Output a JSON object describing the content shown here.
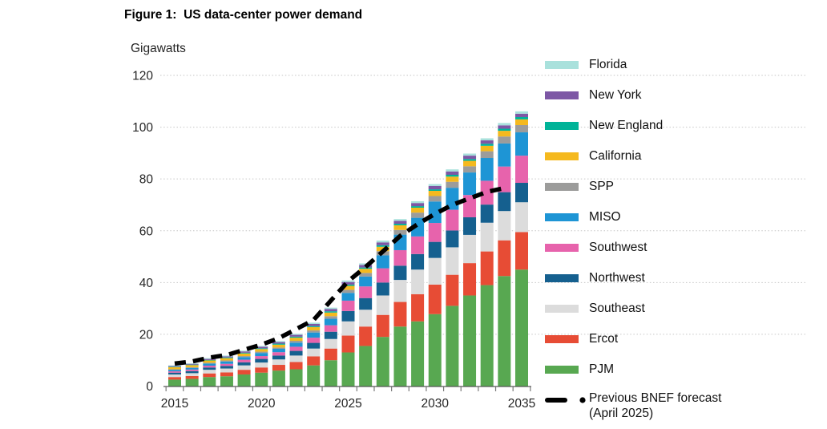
{
  "figure": {
    "title": "Figure 1:  US data-center power demand",
    "y_unit_label": "Gigawatts"
  },
  "legend": {
    "forecast_label_line1": "Previous BNEF forecast",
    "forecast_label_line2": "(April 2025)"
  },
  "chart_data": {
    "type": "bar",
    "stacked": true,
    "title": "Figure 1:  US data-center power demand",
    "ylabel": "Gigawatts",
    "ylim": [
      0,
      120
    ],
    "y_ticks": [
      0,
      20,
      40,
      60,
      80,
      100,
      120
    ],
    "grid": "horizontal-dotted",
    "legend_position": "right",
    "years": [
      2015,
      2016,
      2017,
      2018,
      2019,
      2020,
      2021,
      2022,
      2023,
      2024,
      2025,
      2026,
      2027,
      2028,
      2029,
      2030,
      2031,
      2032,
      2033,
      2034,
      2035
    ],
    "x_tick_years": [
      2015,
      2020,
      2025,
      2030,
      2035
    ],
    "x_tick_labels": [
      "2015",
      "2020",
      "2025",
      "2030",
      "2035"
    ],
    "series": [
      {
        "name": "Florida",
        "color": "#a9e1dc",
        "values": [
          0.2,
          0.2,
          0.3,
          0.3,
          0.3,
          0.3,
          0.4,
          0.4,
          0.5,
          0.5,
          0.6,
          0.6,
          0.7,
          0.7,
          0.7,
          0.7,
          0.8,
          0.8,
          0.8,
          0.9,
          0.9
        ]
      },
      {
        "name": "New York",
        "color": "#7d57a5",
        "values": [
          0.3,
          0.3,
          0.4,
          0.4,
          0.5,
          0.6,
          0.6,
          0.7,
          0.8,
          0.9,
          1.0,
          1.0,
          1.1,
          1.1,
          1.2,
          1.3,
          1.3,
          1.3,
          1.3,
          1.3,
          1.3
        ]
      },
      {
        "name": "New England",
        "color": "#00b398",
        "values": [
          0.2,
          0.2,
          0.2,
          0.3,
          0.3,
          0.3,
          0.4,
          0.4,
          0.4,
          0.5,
          0.5,
          0.5,
          0.6,
          0.6,
          0.6,
          0.6,
          0.7,
          0.7,
          0.8,
          0.8,
          0.9
        ]
      },
      {
        "name": "California",
        "color": "#f5b91e",
        "values": [
          0.8,
          0.8,
          0.9,
          0.9,
          1.0,
          1.0,
          1.1,
          1.2,
          1.3,
          1.4,
          1.5,
          1.6,
          1.7,
          1.8,
          1.9,
          2.0,
          2.0,
          2.1,
          2.1,
          2.2,
          2.2
        ]
      },
      {
        "name": "SPP",
        "color": "#9c9c9b",
        "values": [
          0.2,
          0.3,
          0.3,
          0.4,
          0.4,
          0.5,
          0.5,
          0.7,
          0.8,
          1.0,
          1.2,
          1.4,
          1.6,
          1.8,
          2.0,
          2.1,
          2.3,
          2.4,
          2.6,
          2.7,
          2.8
        ]
      },
      {
        "name": "MISO",
        "color": "#1e95d5",
        "values": [
          0.6,
          0.6,
          0.8,
          0.9,
          1.0,
          1.2,
          1.3,
          1.6,
          2.0,
          2.5,
          3.0,
          3.8,
          5.0,
          6.0,
          7.2,
          8.3,
          8.5,
          8.7,
          8.8,
          8.9,
          9.0
        ]
      },
      {
        "name": "Southwest",
        "color": "#e763ac",
        "values": [
          0.5,
          0.6,
          0.7,
          0.8,
          1.0,
          1.1,
          1.3,
          1.6,
          2.0,
          2.5,
          4.0,
          4.5,
          5.5,
          6.0,
          6.8,
          7.3,
          8.0,
          8.6,
          9.2,
          9.9,
          10.5
        ]
      },
      {
        "name": "Northwest",
        "color": "#15608f",
        "values": [
          0.7,
          0.8,
          0.9,
          1.0,
          1.2,
          1.4,
          1.5,
          1.8,
          2.2,
          2.8,
          4.0,
          4.5,
          5.0,
          5.5,
          6.0,
          6.2,
          6.5,
          6.8,
          7.0,
          7.3,
          7.5
        ]
      },
      {
        "name": "Southeast",
        "color": "#dcdcdc",
        "values": [
          1.0,
          1.1,
          1.4,
          1.5,
          1.7,
          1.9,
          2.1,
          2.5,
          3.0,
          3.7,
          5.5,
          6.5,
          7.5,
          8.5,
          9.5,
          10.3,
          10.6,
          10.9,
          11.1,
          11.3,
          11.5
        ]
      },
      {
        "name": "Ercot",
        "color": "#e74c35",
        "values": [
          1.0,
          1.1,
          1.4,
          1.5,
          1.8,
          2.0,
          2.2,
          2.8,
          3.5,
          4.5,
          6.5,
          7.5,
          8.5,
          9.5,
          10.5,
          11.4,
          12.0,
          12.5,
          13.0,
          13.8,
          14.5
        ]
      },
      {
        "name": "PJM",
        "color": "#58a851",
        "values": [
          2.5,
          2.8,
          3.5,
          3.8,
          4.5,
          5.2,
          6.0,
          6.5,
          8.0,
          10.0,
          13.0,
          15.5,
          19.0,
          23.0,
          25.0,
          27.8,
          31.0,
          35.0,
          39.0,
          42.5,
          45.0
        ]
      }
    ],
    "line_series": {
      "name": "Previous BNEF forecast (April 2025)",
      "color": "#000000",
      "style": "dashed",
      "years": [
        2015,
        2016,
        2017,
        2018,
        2019,
        2020,
        2021,
        2022,
        2023,
        2024,
        2025,
        2026,
        2027,
        2028,
        2029,
        2030,
        2031,
        2032,
        2033,
        2034
      ],
      "values": [
        8.7,
        9.5,
        11,
        12,
        14,
        16,
        18.5,
        22,
        25.5,
        33,
        40.5,
        46,
        52,
        58,
        62.5,
        66.5,
        70,
        72.5,
        75,
        76.5
      ]
    }
  }
}
